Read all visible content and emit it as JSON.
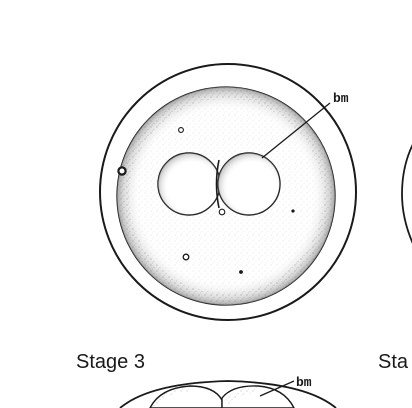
{
  "labels": {
    "stage_main": "Stage 3",
    "stage_next": "Sta",
    "pointer_main": "bm",
    "pointer_bottom": "bm"
  },
  "colors": {
    "ink": "#1a1a1a",
    "stipple": "#6f6f6f",
    "background": "#ffffff"
  }
}
